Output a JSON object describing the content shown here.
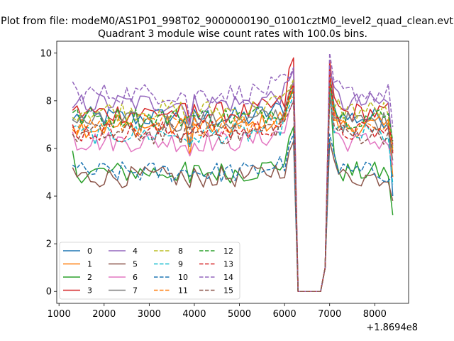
{
  "figure": {
    "suptitle": "Plot from file: modeM0/AS1P01_998T02_9000000190_01001cztM0_level2_quad_clean.evt",
    "title": "Quadrant 3 module wise count rates with 100.0s bins.",
    "offset_label": "+1.8694e8"
  },
  "chart_data": {
    "type": "line",
    "title": "Quadrant 3 module wise count rates with 100.0s bins.",
    "xlabel": "",
    "ylabel": "",
    "x_offset": 186940000,
    "xlim": [
      950,
      8750
    ],
    "ylim": [
      -0.5,
      10.5
    ],
    "xticks": [
      1000,
      2000,
      3000,
      4000,
      5000,
      6000,
      7000,
      8000
    ],
    "xtick_labels": [
      "1000",
      "2000",
      "3000",
      "4000",
      "5000",
      "6000",
      "7000",
      "8000"
    ],
    "yticks": [
      0,
      2,
      4,
      6,
      8,
      10
    ],
    "ytick_labels": [
      "0",
      "2",
      "4",
      "6",
      "8",
      "10"
    ],
    "grid": false,
    "legend_position": "lower-left",
    "legend_columns": 4,
    "series": [
      {
        "name": "0",
        "color": "#1f77b4",
        "dash": "solid",
        "start": 7.2,
        "peak1": 8.5,
        "peak2": 9.2,
        "end": 4.0
      },
      {
        "name": "1",
        "color": "#ff7f0e",
        "dash": "solid",
        "start": 6.8,
        "peak1": 8.6,
        "peak2": 9.0,
        "end": 4.8
      },
      {
        "name": "2",
        "color": "#2ca02c",
        "dash": "solid",
        "start": 5.9,
        "peak1": 6.9,
        "peak2": 8.6,
        "end": 3.2
      },
      {
        "name": "3",
        "color": "#d62728",
        "dash": "solid",
        "start": 7.6,
        "peak1": 9.8,
        "peak2": 9.7,
        "end": 5.8
      },
      {
        "name": "4",
        "color": "#9467bd",
        "dash": "solid",
        "start": 7.7,
        "peak1": 9.3,
        "peak2": 9.4,
        "end": 6.1
      },
      {
        "name": "5",
        "color": "#8c564b",
        "dash": "solid",
        "start": 5.2,
        "peak1": 6.3,
        "peak2": 6.3,
        "end": 3.8
      },
      {
        "name": "6",
        "color": "#e377c2",
        "dash": "solid",
        "start": 6.7,
        "peak1": 8.0,
        "peak2": 8.2,
        "end": 5.3
      },
      {
        "name": "7",
        "color": "#7f7f7f",
        "dash": "solid",
        "start": 7.2,
        "peak1": 8.8,
        "peak2": 8.5,
        "end": 5.5
      },
      {
        "name": "8",
        "color": "#bcbd22",
        "dash": "dashed",
        "start": 7.3,
        "peak1": 8.9,
        "peak2": 8.7,
        "end": 6.0
      },
      {
        "name": "9",
        "color": "#17becf",
        "dash": "dashed",
        "start": 6.9,
        "peak1": 8.2,
        "peak2": 8.4,
        "end": 4.5
      },
      {
        "name": "10",
        "color": "#1f77b4",
        "dash": "dashed",
        "start": 5.3,
        "peak1": 6.6,
        "peak2": 6.6,
        "end": 4.9
      },
      {
        "name": "11",
        "color": "#ff7f0e",
        "dash": "dashed",
        "start": 6.9,
        "peak1": 8.4,
        "peak2": 8.9,
        "end": 5.9
      },
      {
        "name": "12",
        "color": "#2ca02c",
        "dash": "dashed",
        "start": 7.5,
        "peak1": 8.5,
        "peak2": 8.7,
        "end": 6.3
      },
      {
        "name": "13",
        "color": "#d62728",
        "dash": "dashed",
        "start": 7.0,
        "peak1": 8.7,
        "peak2": 9.3,
        "end": 6.2
      },
      {
        "name": "14",
        "color": "#9467bd",
        "dash": "dashed",
        "start": 8.8,
        "peak1": 9.4,
        "peak2": 10.0,
        "end": 6.9
      },
      {
        "name": "15",
        "color": "#8c564b",
        "dash": "dashed",
        "start": 6.6,
        "peak1": 8.0,
        "peak2": 8.1,
        "end": 5.9
      }
    ],
    "series_levels": [
      7.3,
      6.9,
      5.0,
      7.5,
      7.9,
      4.8,
      6.3,
      7.1,
      7.6,
      6.6,
      5.0,
      7.0,
      7.3,
      6.7,
      8.3,
      6.6
    ],
    "x_start": 1300,
    "x_step": 100,
    "dip_x": [
      6300,
      6400,
      6500,
      6600,
      6700,
      6800,
      6900
    ],
    "x_end": 8400
  }
}
